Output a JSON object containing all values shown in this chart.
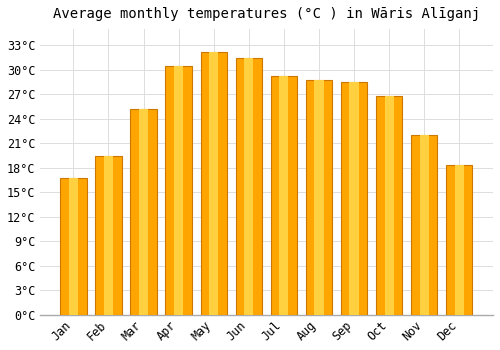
{
  "title": "Average monthly temperatures (°C ) in Wāris Alīganj",
  "months": [
    "Jan",
    "Feb",
    "Mar",
    "Apr",
    "May",
    "Jun",
    "Jul",
    "Aug",
    "Sep",
    "Oct",
    "Nov",
    "Dec"
  ],
  "temperatures": [
    16.8,
    19.5,
    25.2,
    30.5,
    32.2,
    31.5,
    29.3,
    28.8,
    28.5,
    26.8,
    22.0,
    18.3
  ],
  "bar_color_main": "#FFA500",
  "bar_color_bright": "#FFD040",
  "bar_edge_color": "#CC7700",
  "yticks": [
    0,
    3,
    6,
    9,
    12,
    15,
    18,
    21,
    24,
    27,
    30,
    33
  ],
  "ylim": [
    0,
    35
  ],
  "background_color": "#FFFFFF",
  "plot_bg_color": "#FFFFFF",
  "grid_color": "#DDDDDD",
  "title_fontsize": 10,
  "tick_fontsize": 8.5,
  "bar_width": 0.75
}
